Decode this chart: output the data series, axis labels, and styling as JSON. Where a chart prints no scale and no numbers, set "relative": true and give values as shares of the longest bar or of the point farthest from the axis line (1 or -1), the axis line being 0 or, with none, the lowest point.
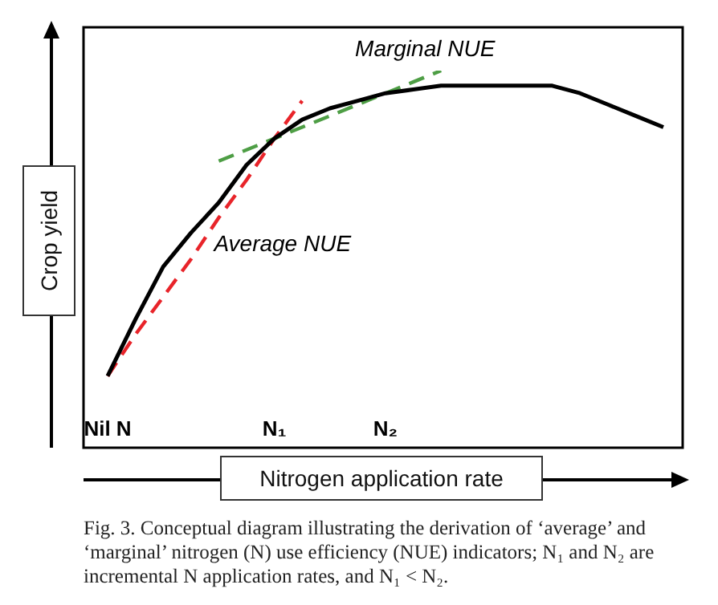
{
  "chart_data": {
    "type": "line",
    "relative": true,
    "legend": false,
    "marker": "none",
    "xlabel": "Nitrogen application rate",
    "ylabel": "Crop yield",
    "categories": [
      "Nil N",
      null,
      null,
      null,
      null,
      null,
      "N₁",
      null,
      null,
      null,
      "N₂",
      null,
      null,
      null,
      null,
      null,
      null,
      null,
      null,
      null,
      null
    ],
    "series": [
      {
        "color": "#000000",
        "line_style": "solid",
        "values": [
          0.19,
          0.34,
          0.48,
          0.57,
          0.65,
          0.75,
          0.82,
          0.87,
          0.9,
          0.92,
          0.94,
          0.95,
          0.96,
          0.96,
          0.96,
          0.96,
          0.96,
          0.94,
          0.91,
          0.88,
          0.85
        ]
      },
      {
        "name": "Average NUE",
        "color": "#e8242a",
        "line_style": "dashed",
        "values": [
          0.19,
          0.3,
          0.4,
          0.5,
          0.61,
          0.71,
          0.82,
          0.92,
          null,
          null,
          null,
          null,
          null,
          null,
          null,
          null,
          null,
          null,
          null,
          null,
          null
        ]
      },
      {
        "name": "Marginal NUE",
        "color": "#4e9e45",
        "line_style": "dashed",
        "values": [
          null,
          null,
          null,
          null,
          0.76,
          0.79,
          0.82,
          0.85,
          0.88,
          0.91,
          0.94,
          0.97,
          1.0,
          null,
          null,
          null,
          null,
          null,
          null,
          null,
          null
        ]
      }
    ],
    "annotations": [
      "Fig. 3. Conceptual diagram illustrating the derivation of ‘average’ and ‘marginal’ nitrogen (N) use efficiency (NUE) indicators; N₁ and N₂ are incremental N application rates, and N₁ < N₂."
    ]
  }
}
